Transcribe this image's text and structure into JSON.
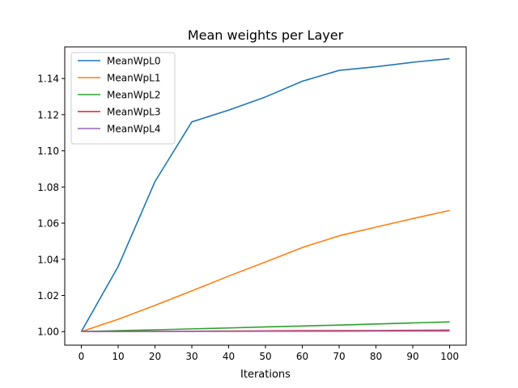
{
  "chart_data": {
    "type": "line",
    "title": "Mean weights per Layer",
    "xlabel": "Iterations",
    "ylabel": "",
    "xlim": [
      -4.5,
      104.5
    ],
    "ylim": [
      0.9925,
      1.1575
    ],
    "xticks": [
      0,
      10,
      20,
      30,
      40,
      50,
      60,
      70,
      80,
      90,
      100
    ],
    "xtick_labels": [
      "0",
      "10",
      "20",
      "30",
      "40",
      "50",
      "60",
      "70",
      "80",
      "90",
      "100"
    ],
    "yticks": [
      1.0,
      1.02,
      1.04,
      1.06,
      1.08,
      1.1,
      1.12,
      1.14
    ],
    "ytick_labels": [
      "1.00",
      "1.02",
      "1.04",
      "1.06",
      "1.08",
      "1.10",
      "1.12",
      "1.14"
    ],
    "grid": false,
    "legend_position": "upper-left",
    "x": [
      0,
      10,
      20,
      30,
      40,
      50,
      60,
      70,
      80,
      90,
      100
    ],
    "series": [
      {
        "name": "MeanWpL0",
        "color": "#1f77b4",
        "values": [
          1.0,
          1.036,
          1.083,
          1.116,
          1.1225,
          1.1298,
          1.1385,
          1.1445,
          1.1465,
          1.149,
          1.151
        ]
      },
      {
        "name": "MeanWpL1",
        "color": "#ff7f0e",
        "values": [
          1.0,
          1.0068,
          1.0145,
          1.0225,
          1.0307,
          1.0385,
          1.0465,
          1.053,
          1.0578,
          1.0625,
          1.067
        ]
      },
      {
        "name": "MeanWpL2",
        "color": "#2ca02c",
        "values": [
          1.0,
          1.0005,
          1.001,
          1.0015,
          1.002,
          1.0026,
          1.0031,
          1.0036,
          1.0042,
          1.0048,
          1.0054
        ]
      },
      {
        "name": "MeanWpL3",
        "color": "#d62728",
        "values": [
          1.0,
          1.0001,
          1.0002,
          1.0002,
          1.0003,
          1.0004,
          1.0005,
          1.0005,
          1.0006,
          1.0007,
          1.0008
        ]
      },
      {
        "name": "MeanWpL4",
        "color": "#9467bd",
        "values": [
          1.0,
          1.0,
          1.0001,
          1.0001,
          1.0001,
          1.0002,
          1.0002,
          1.0002,
          1.0003,
          1.0003,
          1.0003
        ]
      }
    ]
  }
}
